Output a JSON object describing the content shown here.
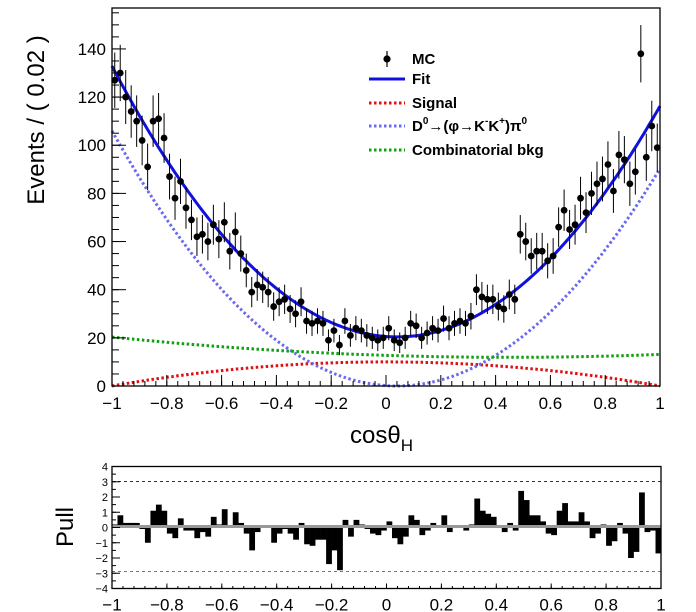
{
  "chart_data": [
    {
      "type": "scatter",
      "title": "",
      "xlabel": "cosθ",
      "xlabel_sub": "H",
      "ylabel": "Events / ( 0.02 )",
      "xlim": [
        -1,
        1
      ],
      "ylim": [
        0,
        157
      ],
      "grid": false,
      "legend_position": "top-right",
      "x_ticks": [
        "−1",
        "−0.8",
        "−0.6",
        "−0.4",
        "−0.2",
        "0",
        "0.2",
        "0.4",
        "0.6",
        "0.8",
        "1"
      ],
      "x_tick_values": [
        -1,
        -0.8,
        -0.6,
        -0.4,
        -0.2,
        0,
        0.2,
        0.4,
        0.6,
        0.8,
        1
      ],
      "y_ticks": [
        "0",
        "20",
        "40",
        "60",
        "80",
        "100",
        "120",
        "140"
      ],
      "y_tick_values": [
        0,
        20,
        40,
        60,
        80,
        100,
        120,
        140
      ],
      "legend": [
        {
          "label": "MC",
          "style": "marker",
          "color": "#000000"
        },
        {
          "label": "Fit",
          "style": "solid",
          "color": "#1010e0"
        },
        {
          "label": "Signal",
          "style": "dotted",
          "color": "#e01010"
        },
        {
          "label": "D→(φ→KK)π",
          "style": "dotted",
          "color": "#6a6af0"
        },
        {
          "label": "Combinatorial bkg",
          "style": "dotted",
          "color": "#10a010"
        }
      ],
      "series": [
        {
          "name": "MC",
          "kind": "points",
          "color": "#000000",
          "x": [
            -0.99,
            -0.97,
            -0.95,
            -0.93,
            -0.91,
            -0.89,
            -0.87,
            -0.85,
            -0.83,
            -0.81,
            -0.79,
            -0.77,
            -0.75,
            -0.73,
            -0.71,
            -0.69,
            -0.67,
            -0.65,
            -0.63,
            -0.61,
            -0.59,
            -0.57,
            -0.55,
            -0.53,
            -0.51,
            -0.49,
            -0.47,
            -0.45,
            -0.43,
            -0.41,
            -0.39,
            -0.37,
            -0.35,
            -0.33,
            -0.31,
            -0.29,
            -0.27,
            -0.25,
            -0.23,
            -0.21,
            -0.19,
            -0.17,
            -0.15,
            -0.13,
            -0.11,
            -0.09,
            -0.07,
            -0.05,
            -0.03,
            -0.01,
            0.01,
            0.03,
            0.05,
            0.07,
            0.09,
            0.11,
            0.13,
            0.15,
            0.17,
            0.19,
            0.21,
            0.23,
            0.25,
            0.27,
            0.29,
            0.31,
            0.33,
            0.35,
            0.37,
            0.39,
            0.41,
            0.43,
            0.45,
            0.47,
            0.49,
            0.51,
            0.53,
            0.55,
            0.57,
            0.59,
            0.61,
            0.63,
            0.65,
            0.67,
            0.69,
            0.71,
            0.73,
            0.75,
            0.77,
            0.79,
            0.81,
            0.83,
            0.85,
            0.87,
            0.89,
            0.91,
            0.93,
            0.95,
            0.97,
            0.99
          ],
          "y": [
            127,
            130,
            120,
            114,
            110,
            102,
            91,
            110,
            111,
            103,
            87,
            78,
            85,
            74,
            69,
            62,
            63,
            60,
            67,
            61,
            68,
            56,
            64,
            55,
            48,
            39,
            42,
            41,
            39,
            33,
            35,
            36,
            32,
            30,
            35,
            27,
            26,
            27,
            26,
            19,
            23,
            17,
            27,
            21,
            24,
            23,
            21,
            20,
            19,
            20,
            24,
            19,
            18,
            20,
            26,
            25,
            20,
            22,
            24,
            23,
            28,
            24,
            26,
            27,
            26,
            29,
            40,
            37,
            36,
            36,
            33,
            32,
            38,
            36,
            63,
            60,
            54,
            56,
            56,
            52,
            54,
            66,
            73,
            65,
            67,
            78,
            72,
            80,
            84,
            86,
            92,
            81,
            96,
            94,
            84,
            89,
            138,
            95,
            108,
            99
          ],
          "errors": [
            11.5,
            11.7,
            11.2,
            10.9,
            10.7,
            10.3,
            9.7,
            10.7,
            10.7,
            10.3,
            9.5,
            9.0,
            9.4,
            8.7,
            8.4,
            8.0,
            8.0,
            7.8,
            8.3,
            7.9,
            8.3,
            7.6,
            8.1,
            7.5,
            7.0,
            6.3,
            6.6,
            6.5,
            6.3,
            5.9,
            6.0,
            6.1,
            5.8,
            5.6,
            6.0,
            5.3,
            5.2,
            5.3,
            5.2,
            4.5,
            4.9,
            4.2,
            5.3,
            4.7,
            5.0,
            4.9,
            4.7,
            4.6,
            4.5,
            4.6,
            5.0,
            4.5,
            4.3,
            4.6,
            5.2,
            5.1,
            4.6,
            4.8,
            5.0,
            4.9,
            5.4,
            5.0,
            5.2,
            5.3,
            5.2,
            5.5,
            6.4,
            6.2,
            6.1,
            6.1,
            5.8,
            5.7,
            6.2,
            6.1,
            8.0,
            7.8,
            7.4,
            7.6,
            7.6,
            7.3,
            7.4,
            8.2,
            8.6,
            8.1,
            8.3,
            8.9,
            8.5,
            9.0,
            9.2,
            9.3,
            9.6,
            9.1,
            9.9,
            9.8,
            9.2,
            9.5,
            11.9,
            9.8,
            10.5,
            10.0
          ]
        },
        {
          "name": "Fit",
          "kind": "curve",
          "color": "#1010e0",
          "a": 20.4,
          "b": 104,
          "x0": 0.04
        },
        {
          "name": "Signal",
          "kind": "curve",
          "color": "#e01010",
          "a": 10,
          "b": -10,
          "x0": 0
        },
        {
          "name": "D→(φ→KK)π",
          "kind": "curve",
          "color": "#6a6af0",
          "a": 0,
          "b": 98,
          "x0": 0.04
        },
        {
          "name": "Combinatorial bkg",
          "kind": "curve",
          "color": "#10a010",
          "a": 12,
          "b": 4,
          "c": -1.2,
          "x0": 0.3
        }
      ]
    },
    {
      "type": "bar",
      "title": "",
      "ylabel": "Pull",
      "xlim": [
        -1,
        1
      ],
      "ylim": [
        -4,
        4
      ],
      "reference_lines": [
        3,
        -3
      ],
      "x_ticks": [
        "−1",
        "−0.8",
        "−0.6",
        "−0.4",
        "−0.2",
        "0",
        "0.2",
        "0.4",
        "0.6",
        "0.8",
        "1"
      ],
      "x_tick_values": [
        -1,
        -0.8,
        -0.6,
        -0.4,
        -0.2,
        0,
        0.2,
        0.4,
        0.6,
        0.8,
        1
      ],
      "y_ticks": [
        "4",
        "3",
        "2",
        "1",
        "0",
        "−1",
        "−2",
        "−3",
        "−4"
      ],
      "y_tick_values": [
        4,
        3,
        2,
        1,
        0,
        -1,
        -2,
        -3,
        -4
      ],
      "series": [
        {
          "name": "Pull",
          "color": "#000000",
          "x": [
            -0.99,
            -0.97,
            -0.95,
            -0.93,
            -0.91,
            -0.89,
            -0.87,
            -0.85,
            -0.83,
            -0.81,
            -0.79,
            -0.77,
            -0.75,
            -0.73,
            -0.71,
            -0.69,
            -0.67,
            -0.65,
            -0.63,
            -0.61,
            -0.59,
            -0.57,
            -0.55,
            -0.53,
            -0.51,
            -0.49,
            -0.47,
            -0.45,
            -0.43,
            -0.41,
            -0.39,
            -0.37,
            -0.35,
            -0.33,
            -0.31,
            -0.29,
            -0.27,
            -0.25,
            -0.23,
            -0.21,
            -0.19,
            -0.17,
            -0.15,
            -0.13,
            -0.11,
            -0.09,
            -0.07,
            -0.05,
            -0.03,
            -0.01,
            0.01,
            0.03,
            0.05,
            0.07,
            0.09,
            0.11,
            0.13,
            0.15,
            0.17,
            0.19,
            0.21,
            0.23,
            0.25,
            0.27,
            0.29,
            0.31,
            0.33,
            0.35,
            0.37,
            0.39,
            0.41,
            0.43,
            0.45,
            0.47,
            0.49,
            0.51,
            0.53,
            0.55,
            0.57,
            0.59,
            0.61,
            0.63,
            0.65,
            0.67,
            0.69,
            0.71,
            0.73,
            0.75,
            0.77,
            0.79,
            0.81,
            0.83,
            0.85,
            0.87,
            0.89,
            0.91,
            0.93,
            0.95,
            0.97,
            0.99
          ],
          "values": [
            0.2,
            0.8,
            0.3,
            0.3,
            0.3,
            -0.1,
            -1.0,
            1.1,
            1.5,
            1.1,
            -0.4,
            -0.7,
            0.6,
            -0.2,
            -0.2,
            -0.7,
            -0.3,
            -0.6,
            0.7,
            0.2,
            1.2,
            0.0,
            1.0,
            0.3,
            -0.4,
            -1.5,
            -0.3,
            0.0,
            0.0,
            -1.0,
            -0.4,
            -0.1,
            -0.4,
            -0.8,
            0.3,
            -1.1,
            -1.2,
            -0.8,
            -0.8,
            -2.4,
            -1.5,
            -2.8,
            0.5,
            -0.6,
            0.5,
            0.2,
            -0.1,
            -0.4,
            -0.5,
            -0.2,
            0.4,
            -0.7,
            -1.1,
            -0.6,
            0.8,
            0.5,
            -0.5,
            -0.2,
            0.3,
            0.0,
            0.8,
            -0.3,
            0.0,
            0.1,
            -0.2,
            0.2,
            1.9,
            1.1,
            0.9,
            0.7,
            0.1,
            -0.3,
            0.3,
            -0.2,
            2.4,
            1.8,
            0.8,
            0.8,
            0.4,
            -0.4,
            -0.5,
            1.1,
            1.6,
            0.4,
            0.4,
            1.0,
            0.4,
            -0.7,
            -0.4,
            0.2,
            -1.2,
            -0.9,
            0.3,
            -0.4,
            -2.0,
            -1.6,
            2.3,
            -0.3,
            -0.2,
            -1.7
          ]
        }
      ]
    }
  ]
}
